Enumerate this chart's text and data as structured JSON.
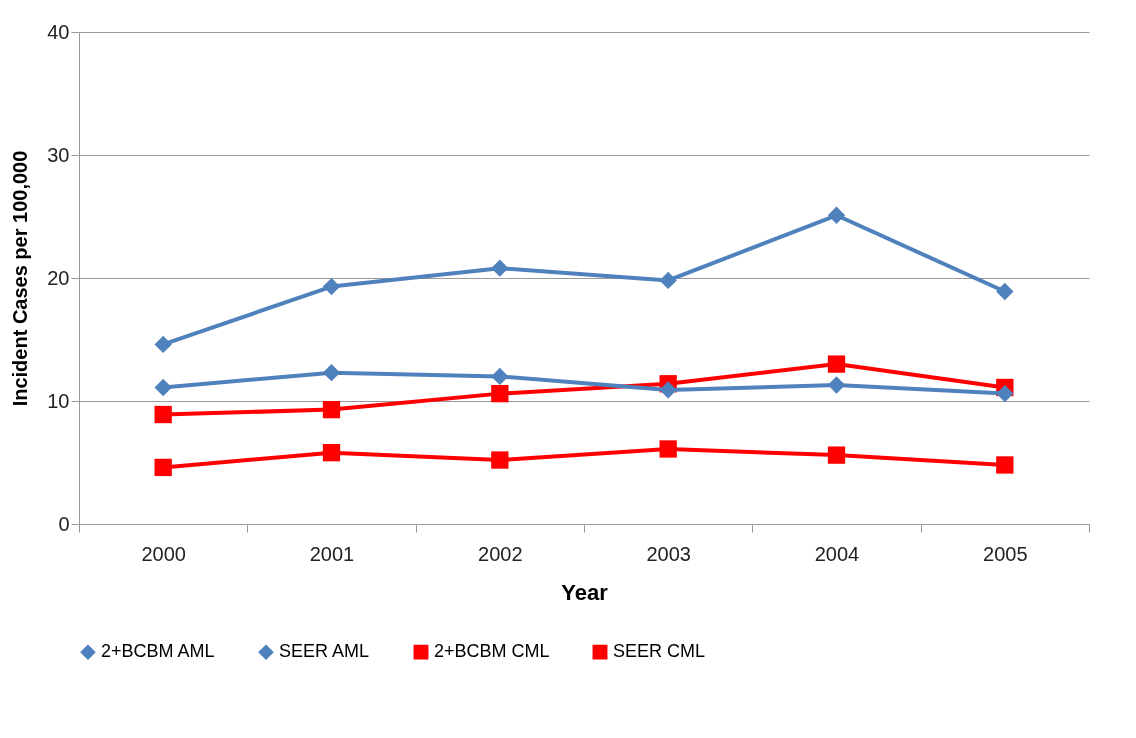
{
  "chart_data": {
    "type": "line",
    "xlabel": "Year",
    "ylabel": "Incident Cases per 100,000",
    "categories": [
      "2000",
      "2001",
      "2002",
      "2003",
      "2004",
      "2005"
    ],
    "series": [
      {
        "name": "2+BCBM AML",
        "color": "#4f81bd",
        "marker": "diamond",
        "values": [
          14.6,
          19.3,
          20.8,
          19.8,
          25.1,
          18.9
        ]
      },
      {
        "name": "SEER AML",
        "color": "#4f81bd",
        "marker": "diamond",
        "values": [
          11.1,
          12.3,
          12.0,
          10.9,
          11.3,
          10.6
        ]
      },
      {
        "name": "2+BCBM CML",
        "color": "#ff0000",
        "marker": "square",
        "values": [
          8.9,
          9.3,
          10.6,
          11.4,
          13.0,
          11.1
        ]
      },
      {
        "name": "SEER CML",
        "color": "#ff0000",
        "marker": "square",
        "values": [
          4.6,
          5.8,
          5.2,
          6.1,
          5.6,
          4.8
        ]
      }
    ],
    "ylim": [
      0,
      40
    ],
    "yticks": [
      0,
      10,
      20,
      30,
      40
    ],
    "grid": "y",
    "legend": "bottom",
    "line_style": "solid"
  }
}
